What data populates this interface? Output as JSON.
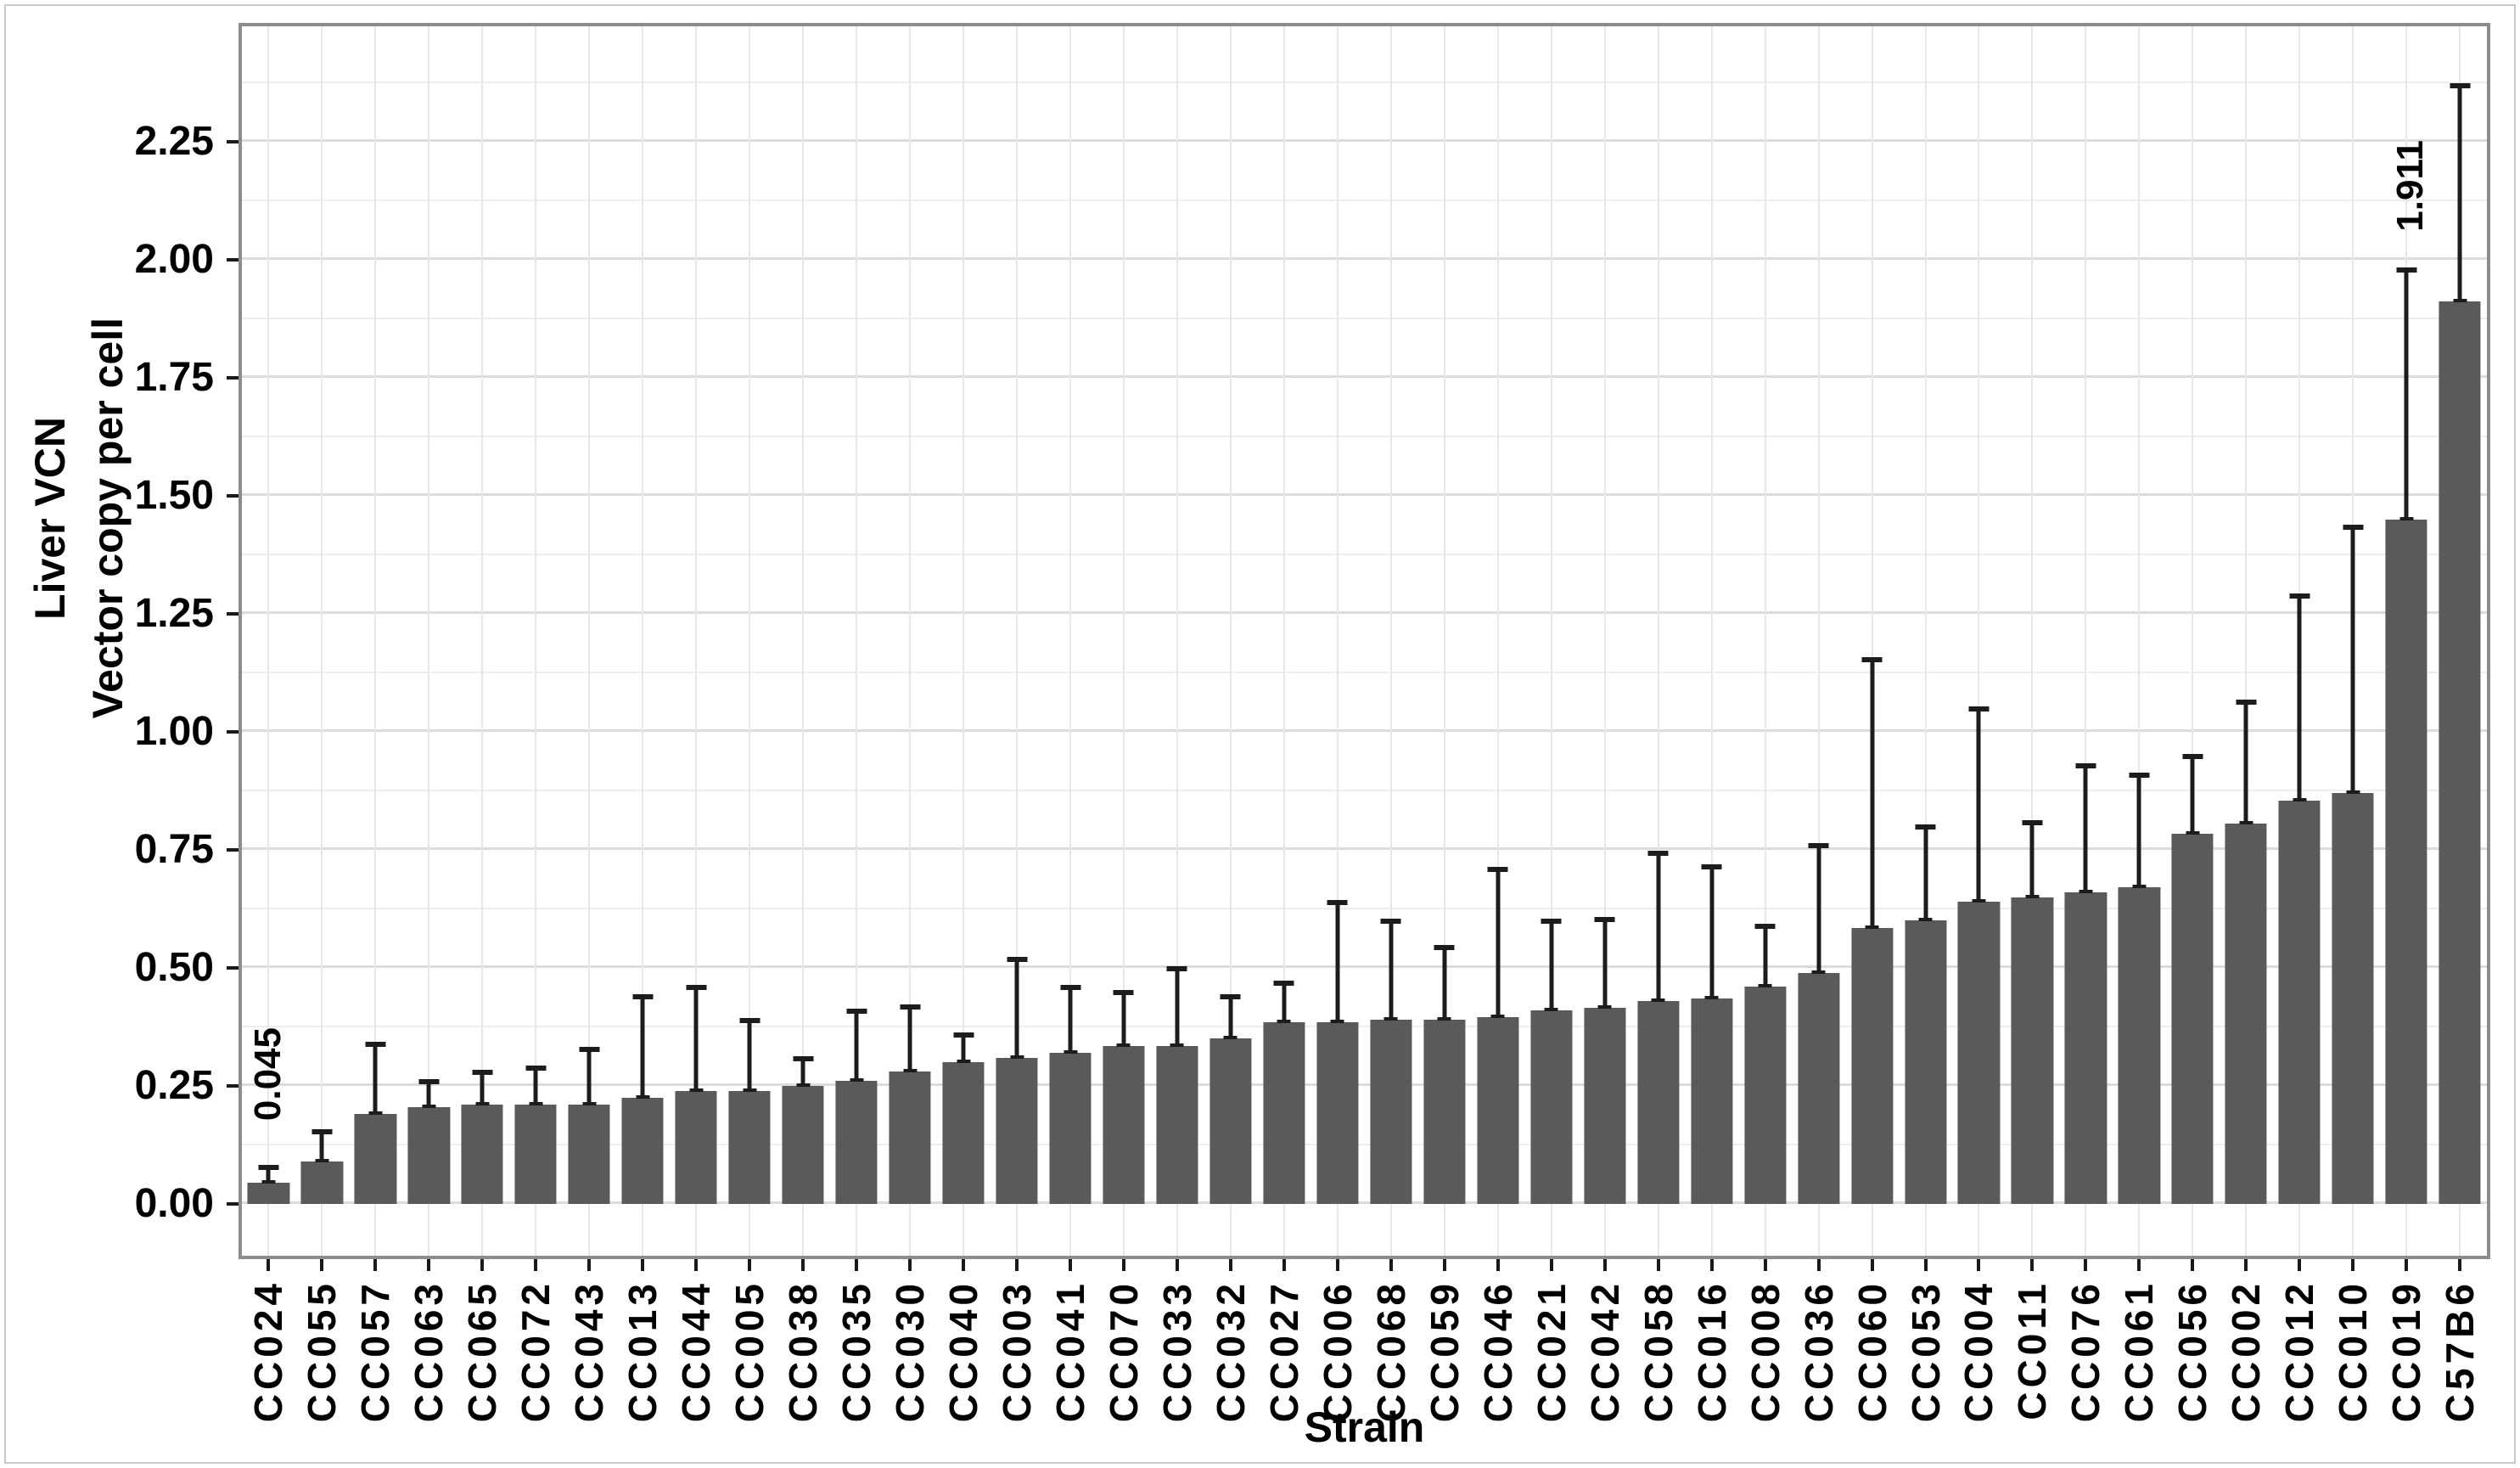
{
  "figure": {
    "y_axis_title_line1": "Liver VCN",
    "y_axis_title_line2": "Vector copy per cell",
    "x_axis_title": "Strain"
  },
  "chart_data": {
    "type": "bar",
    "title": "",
    "xlabel": "Strain",
    "ylabel": "Liver VCN / Vector copy per cell",
    "ylim": [
      0,
      2.5
    ],
    "y_major_ticks": [
      0,
      0.25,
      0.5,
      0.75,
      1.0,
      1.25,
      1.5,
      1.75,
      2.0,
      2.25
    ],
    "y_minor_step": 0.125,
    "grid": "major and minor horizontal, major vertical per category",
    "legend_position": "none",
    "bar_color": "#5a5a5a",
    "error_color": "#1c1c1c",
    "categories": [
      "CC024",
      "CC055",
      "CC057",
      "CC063",
      "CC065",
      "CC072",
      "CC043",
      "CC013",
      "CC044",
      "CC005",
      "CC038",
      "CC035",
      "CC030",
      "CC040",
      "CC003",
      "CC041",
      "CC070",
      "CC033",
      "CC032",
      "CC027",
      "CC006",
      "CC068",
      "CC059",
      "CC046",
      "CC021",
      "CC042",
      "CC058",
      "CC016",
      "CC008",
      "CC036",
      "CC060",
      "CC053",
      "CC004",
      "CC011",
      "CC076",
      "CC061",
      "CC056",
      "CC002",
      "CC012",
      "CC010",
      "CC019",
      "C57B6"
    ],
    "values": [
      0.045,
      0.09,
      0.19,
      0.205,
      0.21,
      0.21,
      0.21,
      0.225,
      0.24,
      0.24,
      0.25,
      0.26,
      0.28,
      0.3,
      0.31,
      0.32,
      0.335,
      0.335,
      0.35,
      0.385,
      0.385,
      0.39,
      0.39,
      0.395,
      0.41,
      0.415,
      0.43,
      0.435,
      0.46,
      0.49,
      0.585,
      0.6,
      0.64,
      0.65,
      0.66,
      0.67,
      0.785,
      0.805,
      0.855,
      0.87,
      1.45,
      1.911
    ],
    "error_upper": [
      0.08,
      0.155,
      0.34,
      0.26,
      0.28,
      0.29,
      0.33,
      0.44,
      0.46,
      0.39,
      0.31,
      0.41,
      0.42,
      0.36,
      0.52,
      0.46,
      0.45,
      0.5,
      0.44,
      0.47,
      0.64,
      0.6,
      0.545,
      0.71,
      0.6,
      0.605,
      0.745,
      0.715,
      0.59,
      0.76,
      1.155,
      0.8,
      1.05,
      0.81,
      0.93,
      0.91,
      0.95,
      1.065,
      1.29,
      1.435,
      1.98,
      2.37
    ],
    "annotations": [
      {
        "text": "0.045",
        "bar_index": 0,
        "bottom_value": 0.176,
        "dx": 0
      },
      {
        "text": "1.911",
        "bar_index": 41,
        "bottom_value": 2.06,
        "dx": -58
      }
    ]
  }
}
